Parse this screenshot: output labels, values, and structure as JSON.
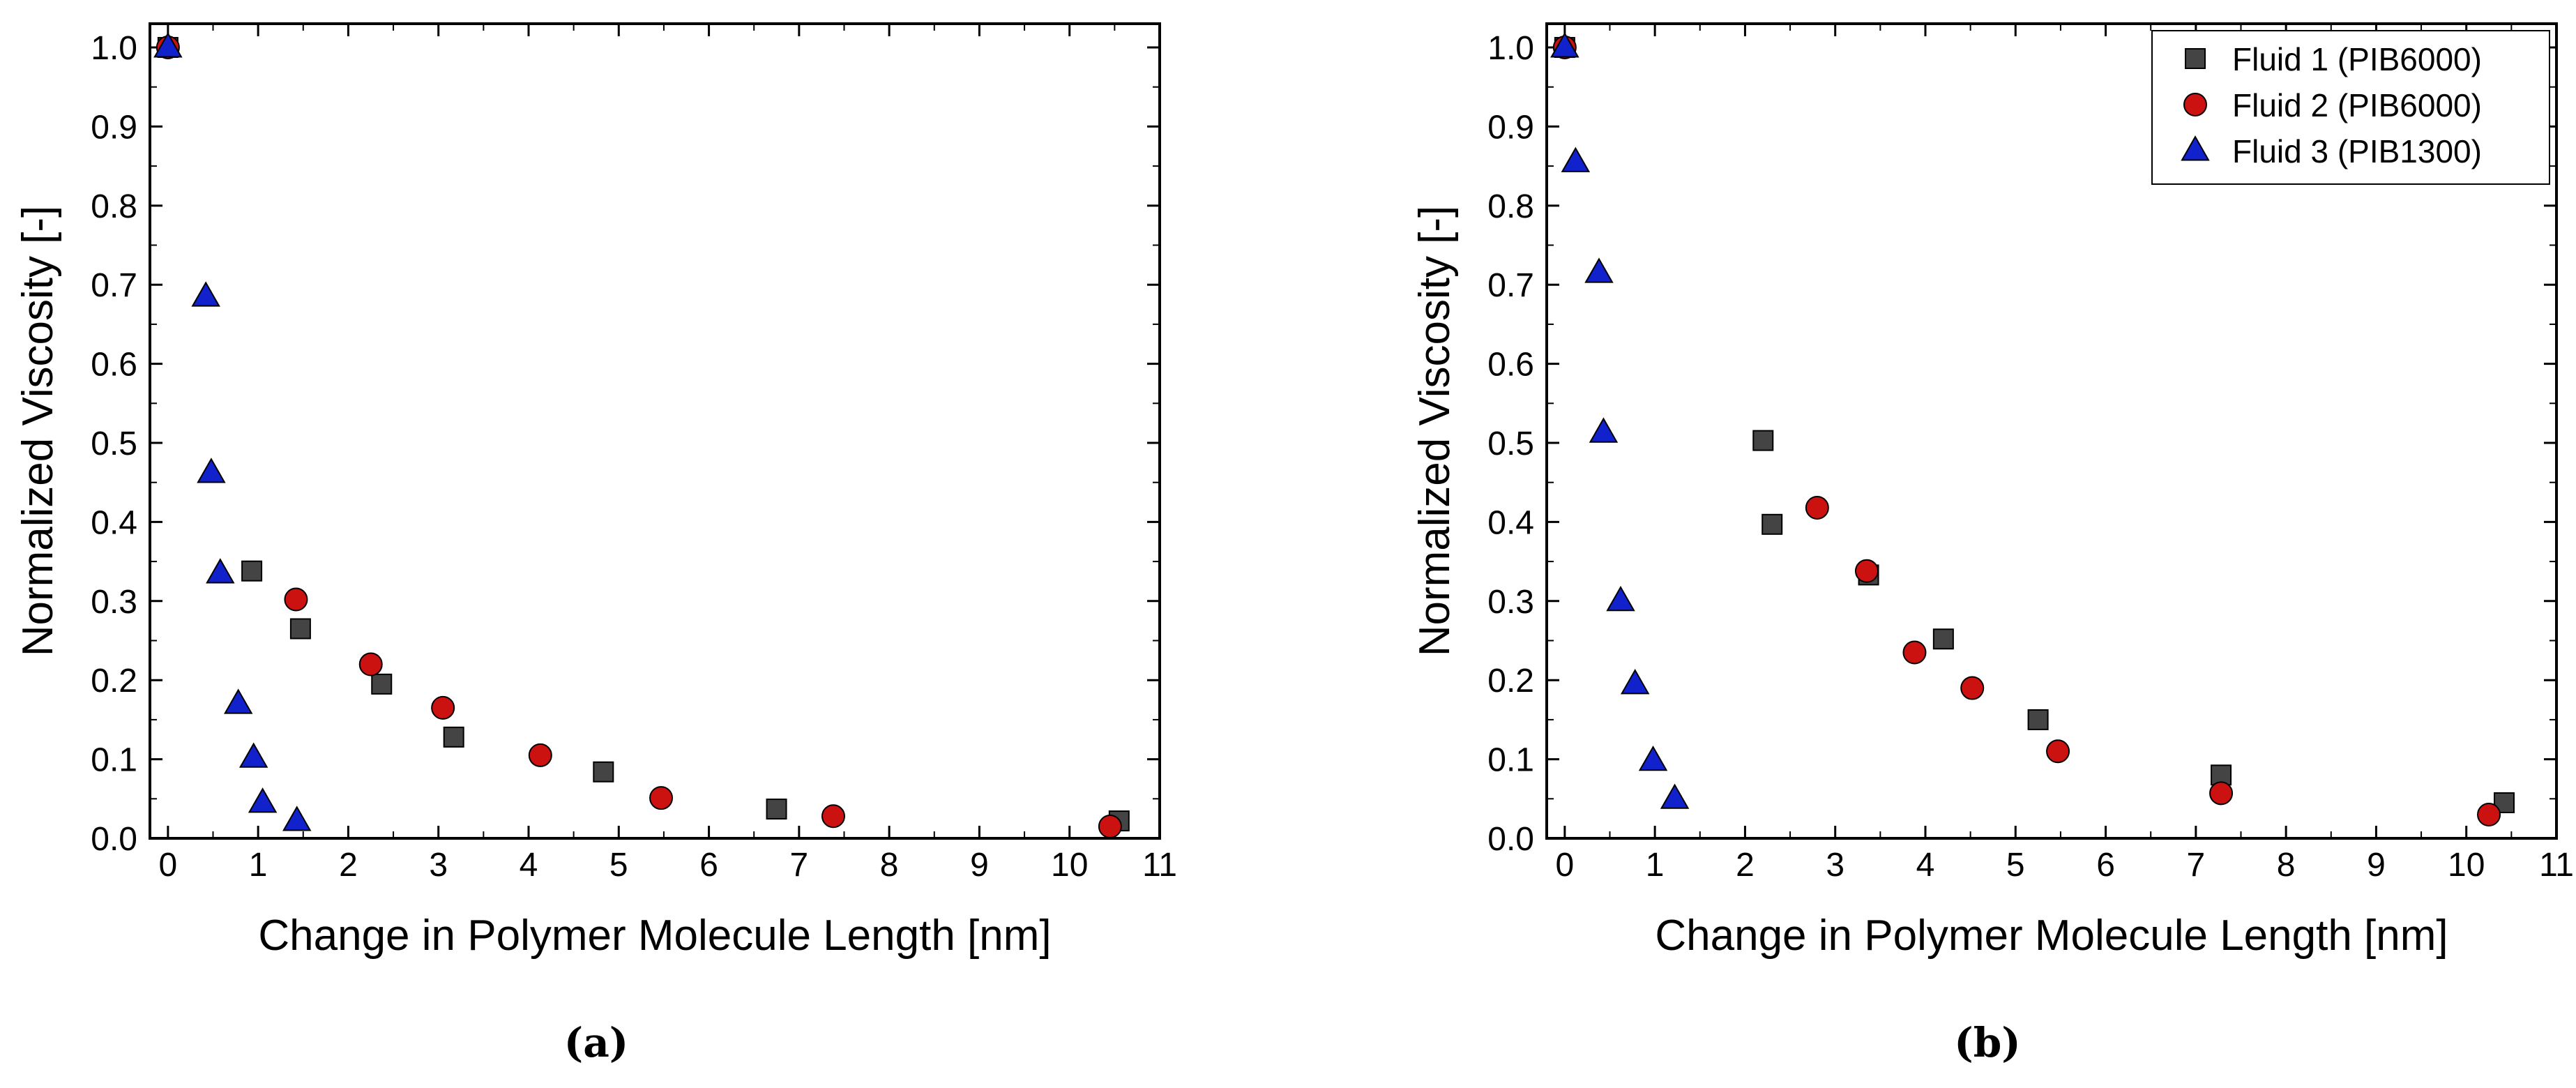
{
  "chart_data": [
    {
      "type": "scatter",
      "caption": "(a)",
      "xlabel": "Change in Polymer Molecule Length [nm]",
      "ylabel": "Normalized Viscosity [-]",
      "xlim": [
        -0.2,
        11
      ],
      "ylim": [
        0,
        1.03
      ],
      "x_ticks": [
        0,
        1,
        2,
        3,
        4,
        5,
        6,
        7,
        8,
        9,
        10,
        11
      ],
      "y_ticks": [
        0.0,
        0.1,
        0.2,
        0.3,
        0.4,
        0.5,
        0.6,
        0.7,
        0.8,
        0.9,
        1.0
      ],
      "x_tick_labels": [
        "0",
        "1",
        "2",
        "3",
        "4",
        "5",
        "6",
        "7",
        "8",
        "9",
        "10",
        "11"
      ],
      "y_tick_labels": [
        "0.0",
        "0.1",
        "0.2",
        "0.3",
        "0.4",
        "0.5",
        "0.6",
        "0.7",
        "0.8",
        "0.9",
        "1.0"
      ],
      "legend": null,
      "series": [
        {
          "name": "Fluid 1 (PIB6000)",
          "marker": "square",
          "color": "#444444",
          "points": [
            [
              0.0,
              1.0
            ],
            [
              0.93,
              0.338
            ],
            [
              1.47,
              0.265
            ],
            [
              2.37,
              0.195
            ],
            [
              3.17,
              0.128
            ],
            [
              4.83,
              0.084
            ],
            [
              6.75,
              0.037
            ],
            [
              10.55,
              0.022
            ]
          ]
        },
        {
          "name": "Fluid 2 (PIB6000)",
          "marker": "circle",
          "color": "#cc1111",
          "points": [
            [
              0.0,
              1.0
            ],
            [
              1.42,
              0.302
            ],
            [
              2.25,
              0.22
            ],
            [
              3.05,
              0.165
            ],
            [
              4.13,
              0.105
            ],
            [
              5.47,
              0.051
            ],
            [
              7.38,
              0.028
            ],
            [
              10.45,
              0.015
            ]
          ]
        },
        {
          "name": "Fluid 3 (PIB1300)",
          "marker": "triangle",
          "color": "#1122cc",
          "points": [
            [
              0.0,
              1.0
            ],
            [
              0.42,
              0.685
            ],
            [
              0.48,
              0.462
            ],
            [
              0.58,
              0.335
            ],
            [
              0.78,
              0.17
            ],
            [
              0.95,
              0.102
            ],
            [
              1.05,
              0.045
            ],
            [
              1.43,
              0.022
            ]
          ]
        }
      ]
    },
    {
      "type": "scatter",
      "caption": "(b)",
      "xlabel": "Change in Polymer Molecule Length [nm]",
      "ylabel": "Normalized Viscosity [-]",
      "xlim": [
        -0.2,
        11
      ],
      "ylim": [
        0,
        1.03
      ],
      "x_ticks": [
        0,
        1,
        2,
        3,
        4,
        5,
        6,
        7,
        8,
        9,
        10,
        11
      ],
      "y_ticks": [
        0.0,
        0.1,
        0.2,
        0.3,
        0.4,
        0.5,
        0.6,
        0.7,
        0.8,
        0.9,
        1.0
      ],
      "x_tick_labels": [
        "0",
        "1",
        "2",
        "3",
        "4",
        "5",
        "6",
        "7",
        "8",
        "9",
        "10",
        "11"
      ],
      "y_tick_labels": [
        "0.0",
        "0.1",
        "0.2",
        "0.3",
        "0.4",
        "0.5",
        "0.6",
        "0.7",
        "0.8",
        "0.9",
        "1.0"
      ],
      "legend": "top-right",
      "series": [
        {
          "name": "Fluid 1 (PIB6000)",
          "marker": "square",
          "color": "#444444",
          "points": [
            [
              0.0,
              1.0
            ],
            [
              2.2,
              0.503
            ],
            [
              2.3,
              0.397
            ],
            [
              3.37,
              0.333
            ],
            [
              4.2,
              0.252
            ],
            [
              5.25,
              0.15
            ],
            [
              7.28,
              0.08
            ],
            [
              10.42,
              0.045
            ]
          ]
        },
        {
          "name": "Fluid 2 (PIB6000)",
          "marker": "circle",
          "color": "#cc1111",
          "points": [
            [
              0.0,
              1.0
            ],
            [
              2.8,
              0.418
            ],
            [
              3.35,
              0.338
            ],
            [
              3.88,
              0.235
            ],
            [
              4.52,
              0.19
            ],
            [
              5.47,
              0.11
            ],
            [
              7.28,
              0.057
            ],
            [
              10.25,
              0.03
            ]
          ]
        },
        {
          "name": "Fluid 3 (PIB1300)",
          "marker": "triangle",
          "color": "#1122cc",
          "points": [
            [
              0.0,
              1.0
            ],
            [
              0.12,
              0.855
            ],
            [
              0.38,
              0.715
            ],
            [
              0.43,
              0.513
            ],
            [
              0.62,
              0.3
            ],
            [
              0.78,
              0.195
            ],
            [
              0.98,
              0.098
            ],
            [
              1.22,
              0.05
            ]
          ]
        }
      ]
    }
  ]
}
